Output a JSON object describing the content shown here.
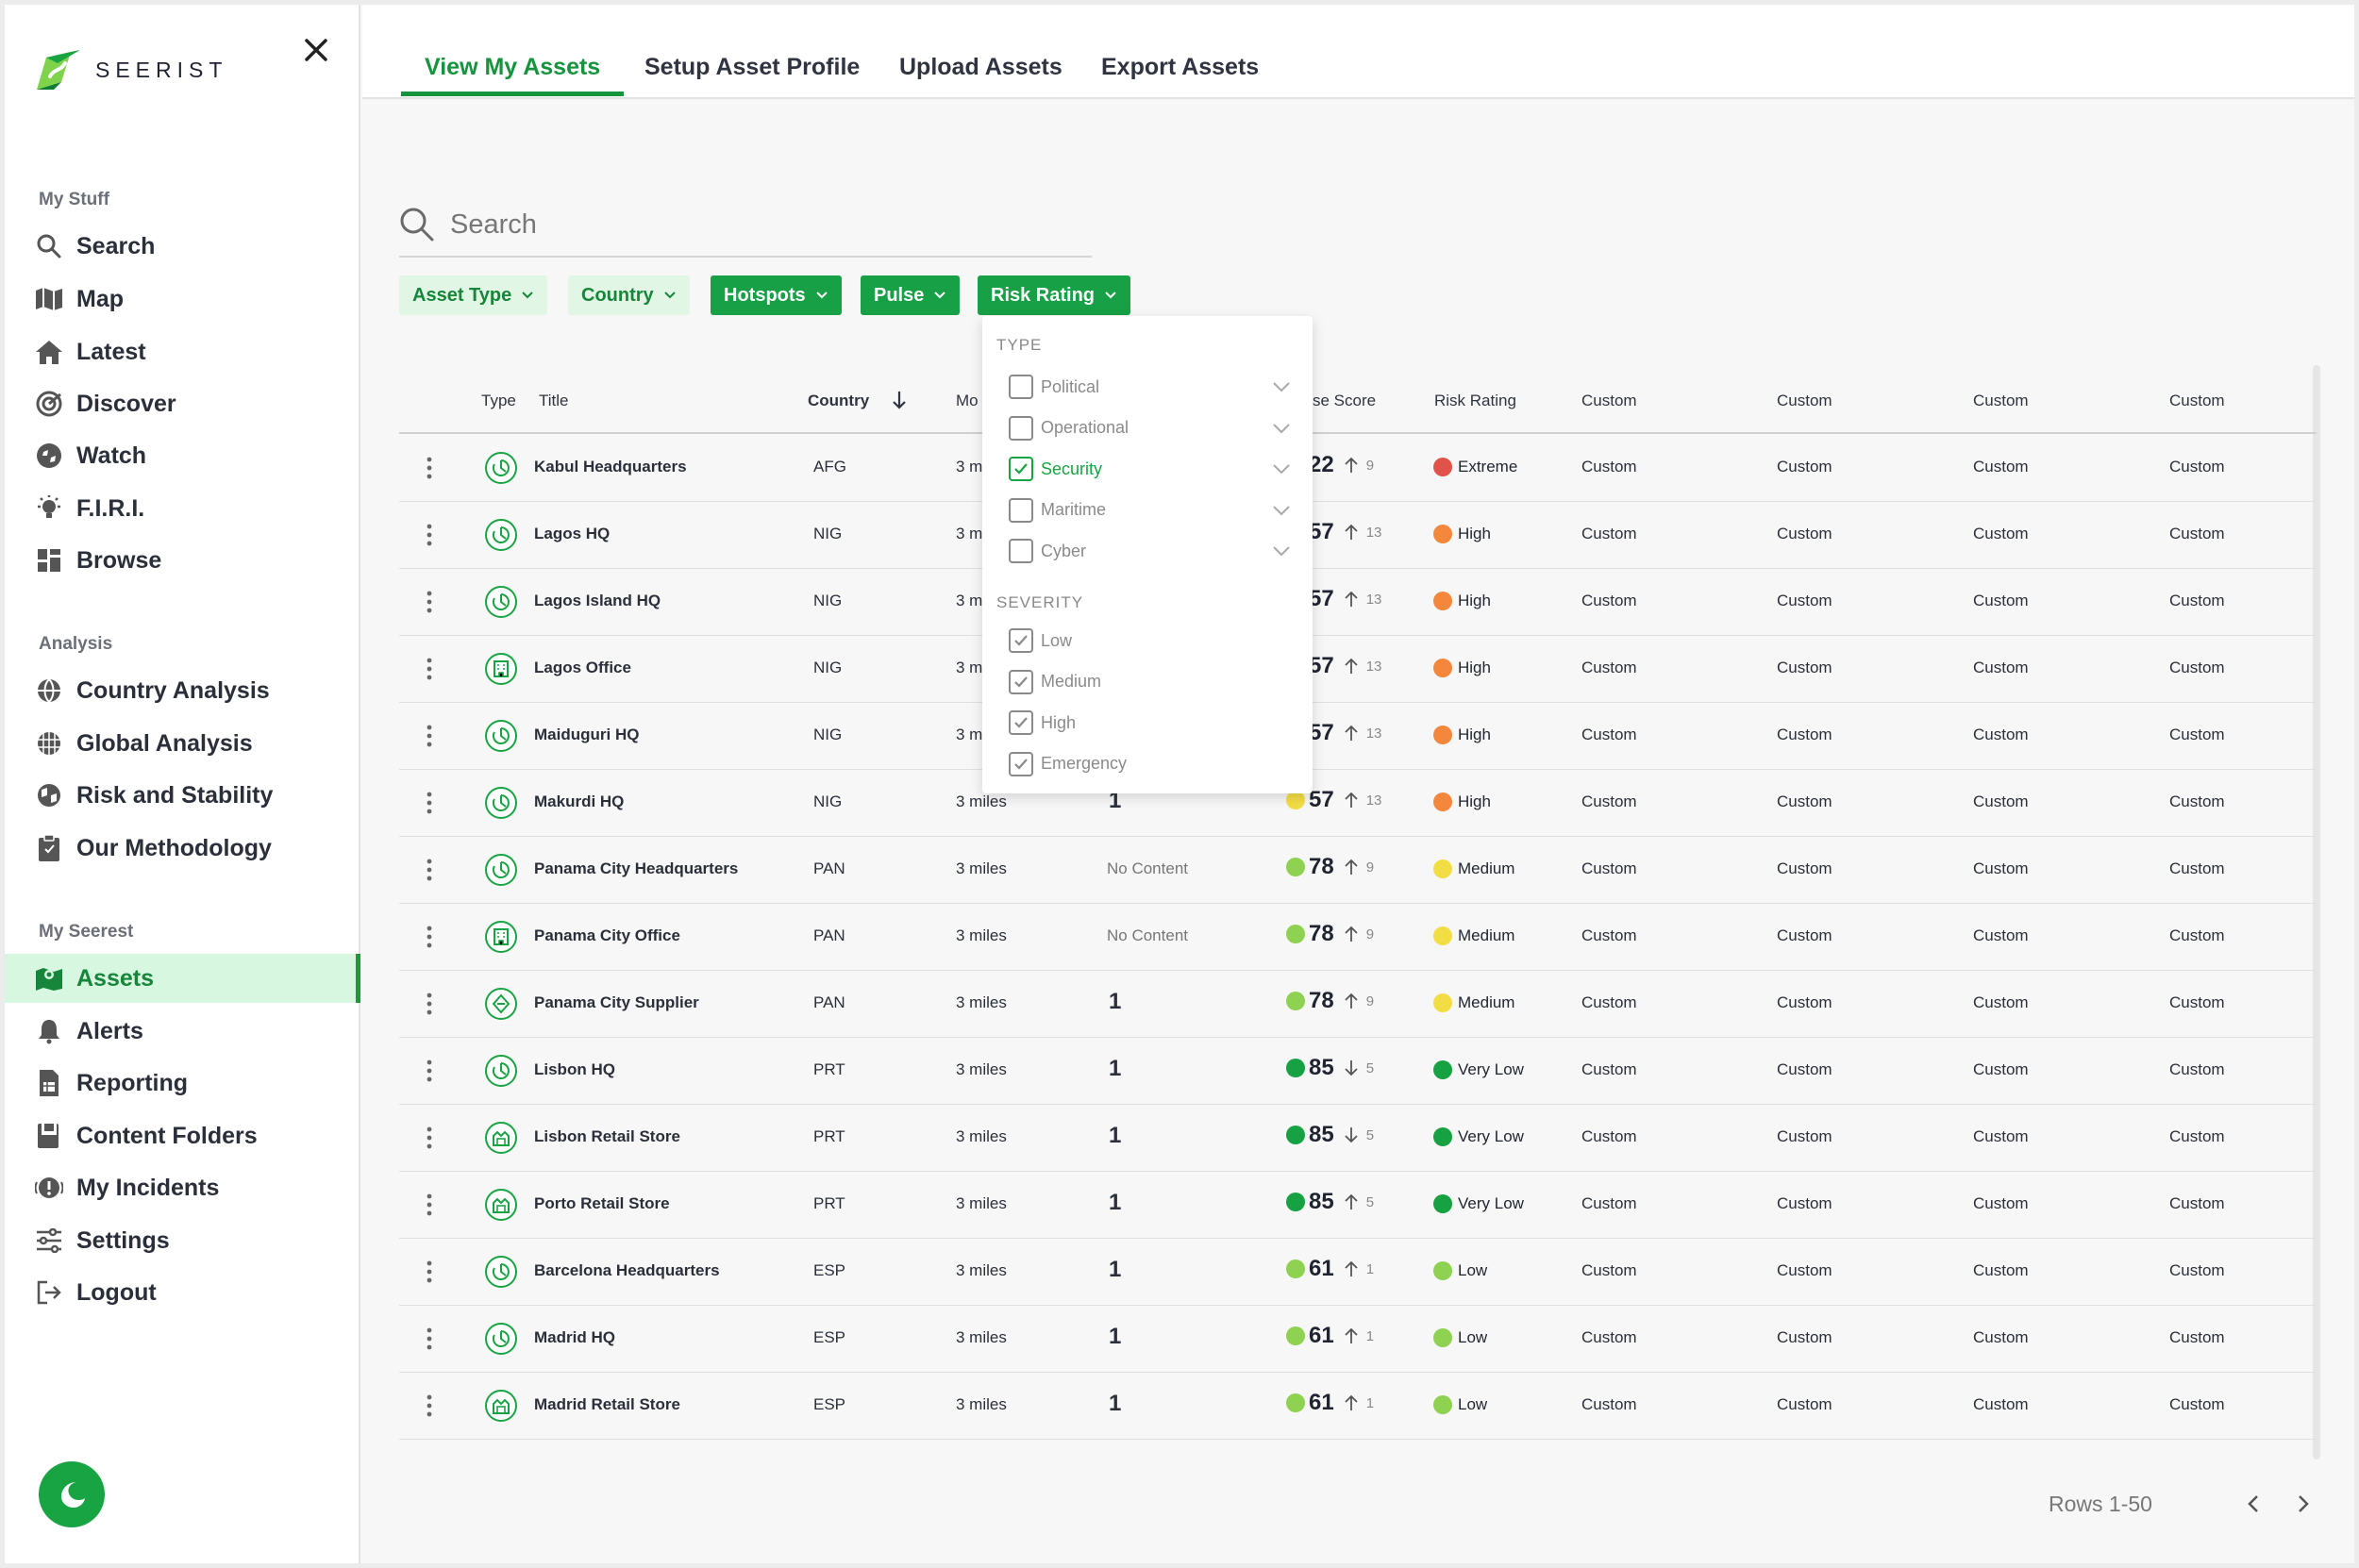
{
  "brand": {
    "name": "SEERIST"
  },
  "sidebar": {
    "sections": [
      {
        "label": "My Stuff",
        "items": [
          {
            "label": "Search",
            "icon": "search-icon"
          },
          {
            "label": "Map",
            "icon": "map-icon"
          },
          {
            "label": "Latest",
            "icon": "home-icon"
          },
          {
            "label": "Discover",
            "icon": "discover-icon"
          },
          {
            "label": "Watch",
            "icon": "watch-icon"
          },
          {
            "label": "F.I.R.I.",
            "icon": "bulb-icon"
          },
          {
            "label": "Browse",
            "icon": "browse-icon"
          }
        ]
      },
      {
        "label": "Analysis",
        "items": [
          {
            "label": "Country Analysis",
            "icon": "globe-icon"
          },
          {
            "label": "Global Analysis",
            "icon": "globe-grid-icon"
          },
          {
            "label": "Risk and Stability",
            "icon": "risk-globe-icon"
          },
          {
            "label": "Our Methodology",
            "icon": "clipboard-icon"
          }
        ]
      },
      {
        "label": "My Seerest",
        "items": [
          {
            "label": "Assets",
            "icon": "assets-map-icon",
            "active": true
          },
          {
            "label": "Alerts",
            "icon": "bell-icon"
          },
          {
            "label": "Reporting",
            "icon": "report-icon"
          },
          {
            "label": "Content Folders",
            "icon": "folder-icon"
          },
          {
            "label": "My Incidents",
            "icon": "incident-icon"
          },
          {
            "label": "Settings",
            "icon": "sliders-icon"
          },
          {
            "label": "Logout",
            "icon": "logout-icon"
          }
        ]
      }
    ]
  },
  "tabs": [
    {
      "label": "View My Assets",
      "active": true
    },
    {
      "label": "Setup Asset Profile"
    },
    {
      "label": "Upload Assets"
    },
    {
      "label": "Export Assets"
    }
  ],
  "search": {
    "placeholder": "Search",
    "value": ""
  },
  "filters": [
    {
      "label": "Asset Type",
      "style": "light"
    },
    {
      "label": "Country",
      "style": "light"
    },
    {
      "label": "Hotspots",
      "style": "dark"
    },
    {
      "label": "Pulse",
      "style": "dark"
    },
    {
      "label": "Risk Rating",
      "style": "dark"
    }
  ],
  "dropdown": {
    "type_header": "TYPE",
    "types": [
      {
        "label": "Political",
        "checked": false
      },
      {
        "label": "Operational",
        "checked": false
      },
      {
        "label": "Security",
        "checked": true
      },
      {
        "label": "Maritime",
        "checked": false
      },
      {
        "label": "Cyber",
        "checked": false
      }
    ],
    "severity_header": "SEVERITY",
    "severities": [
      {
        "label": "Low",
        "checked": true
      },
      {
        "label": "Medium",
        "checked": true
      },
      {
        "label": "High",
        "checked": true
      },
      {
        "label": "Emergency",
        "checked": true
      }
    ]
  },
  "table": {
    "headers": {
      "type": "Type",
      "title": "Title",
      "country": "Country",
      "mo": "Mo",
      "score": "se Score",
      "risk": "Risk Rating",
      "custom1": "Custom",
      "custom2": "Custom",
      "custom3": "Custom",
      "custom4": "Custom"
    },
    "rows": [
      {
        "type": "office",
        "title": "Kabul Headquarters",
        "country": "AFG",
        "distance": "3 m",
        "hotspots": "",
        "score": "22",
        "trend": "up",
        "delta": "9",
        "risk": "Extreme"
      },
      {
        "type": "office",
        "title": "Lagos HQ",
        "country": "NIG",
        "distance": "3 m",
        "hotspots": "",
        "score": "57",
        "trend": "up",
        "delta": "13",
        "risk": "High"
      },
      {
        "type": "office",
        "title": "Lagos Island HQ",
        "country": "NIG",
        "distance": "3 m",
        "hotspots": "",
        "score": "57",
        "trend": "up",
        "delta": "13",
        "risk": "High"
      },
      {
        "type": "building",
        "title": "Lagos Office",
        "country": "NIG",
        "distance": "3 m",
        "hotspots": "",
        "score": "57",
        "trend": "up",
        "delta": "13",
        "risk": "High"
      },
      {
        "type": "office",
        "title": "Maiduguri HQ",
        "country": "NIG",
        "distance": "3 m",
        "hotspots": "",
        "score": "57",
        "trend": "up",
        "delta": "13",
        "risk": "High"
      },
      {
        "type": "office",
        "title": "Makurdi HQ",
        "country": "NIG",
        "distance": "3 miles",
        "hotspots": "1",
        "score": "57",
        "trend": "up",
        "delta": "13",
        "risk": "High"
      },
      {
        "type": "office",
        "title": "Panama City Headquarters",
        "country": "PAN",
        "distance": "3 miles",
        "hotspots": "No Content",
        "score": "78",
        "trend": "up",
        "delta": "9",
        "risk": "Medium"
      },
      {
        "type": "building",
        "title": "Panama City Office",
        "country": "PAN",
        "distance": "3 miles",
        "hotspots": "No Content",
        "score": "78",
        "trend": "up",
        "delta": "9",
        "risk": "Medium"
      },
      {
        "type": "supplier",
        "title": "Panama City Supplier",
        "country": "PAN",
        "distance": "3 miles",
        "hotspots": "1",
        "score": "78",
        "trend": "up",
        "delta": "9",
        "risk": "Medium"
      },
      {
        "type": "office",
        "title": "Lisbon HQ",
        "country": "PRT",
        "distance": "3 miles",
        "hotspots": "1",
        "score": "85",
        "trend": "down",
        "delta": "5",
        "risk": "Very Low"
      },
      {
        "type": "store",
        "title": "Lisbon Retail Store",
        "country": "PRT",
        "distance": "3 miles",
        "hotspots": "1",
        "score": "85",
        "trend": "down",
        "delta": "5",
        "risk": "Very Low"
      },
      {
        "type": "store",
        "title": "Porto Retail Store",
        "country": "PRT",
        "distance": "3 miles",
        "hotspots": "1",
        "score": "85",
        "trend": "up",
        "delta": "5",
        "risk": "Very Low"
      },
      {
        "type": "office",
        "title": "Barcelona Headquarters",
        "country": "ESP",
        "distance": "3 miles",
        "hotspots": "1",
        "score": "61",
        "trend": "up",
        "delta": "1",
        "risk": "Low"
      },
      {
        "type": "office",
        "title": "Madrid HQ",
        "country": "ESP",
        "distance": "3 miles",
        "hotspots": "1",
        "score": "61",
        "trend": "up",
        "delta": "1",
        "risk": "Low"
      },
      {
        "type": "store",
        "title": "Madrid Retail Store",
        "country": "ESP",
        "distance": "3 miles",
        "hotspots": "1",
        "score": "61",
        "trend": "up",
        "delta": "1",
        "risk": "Low"
      }
    ],
    "custom_value": "Custom"
  },
  "colors": {
    "accent": "#17a045",
    "risk": {
      "Extreme": "#e0534a",
      "High": "#f4873b",
      "Medium": "#f3dd45",
      "Low": "#8fd150",
      "Very Low": "#16a142"
    },
    "score": {
      "22": "#e0534a",
      "57": "#f3dd45",
      "78": "#8fd150",
      "85": "#16a142",
      "61": "#8fd150"
    }
  },
  "pagination": {
    "label": "Rows 1-50"
  }
}
